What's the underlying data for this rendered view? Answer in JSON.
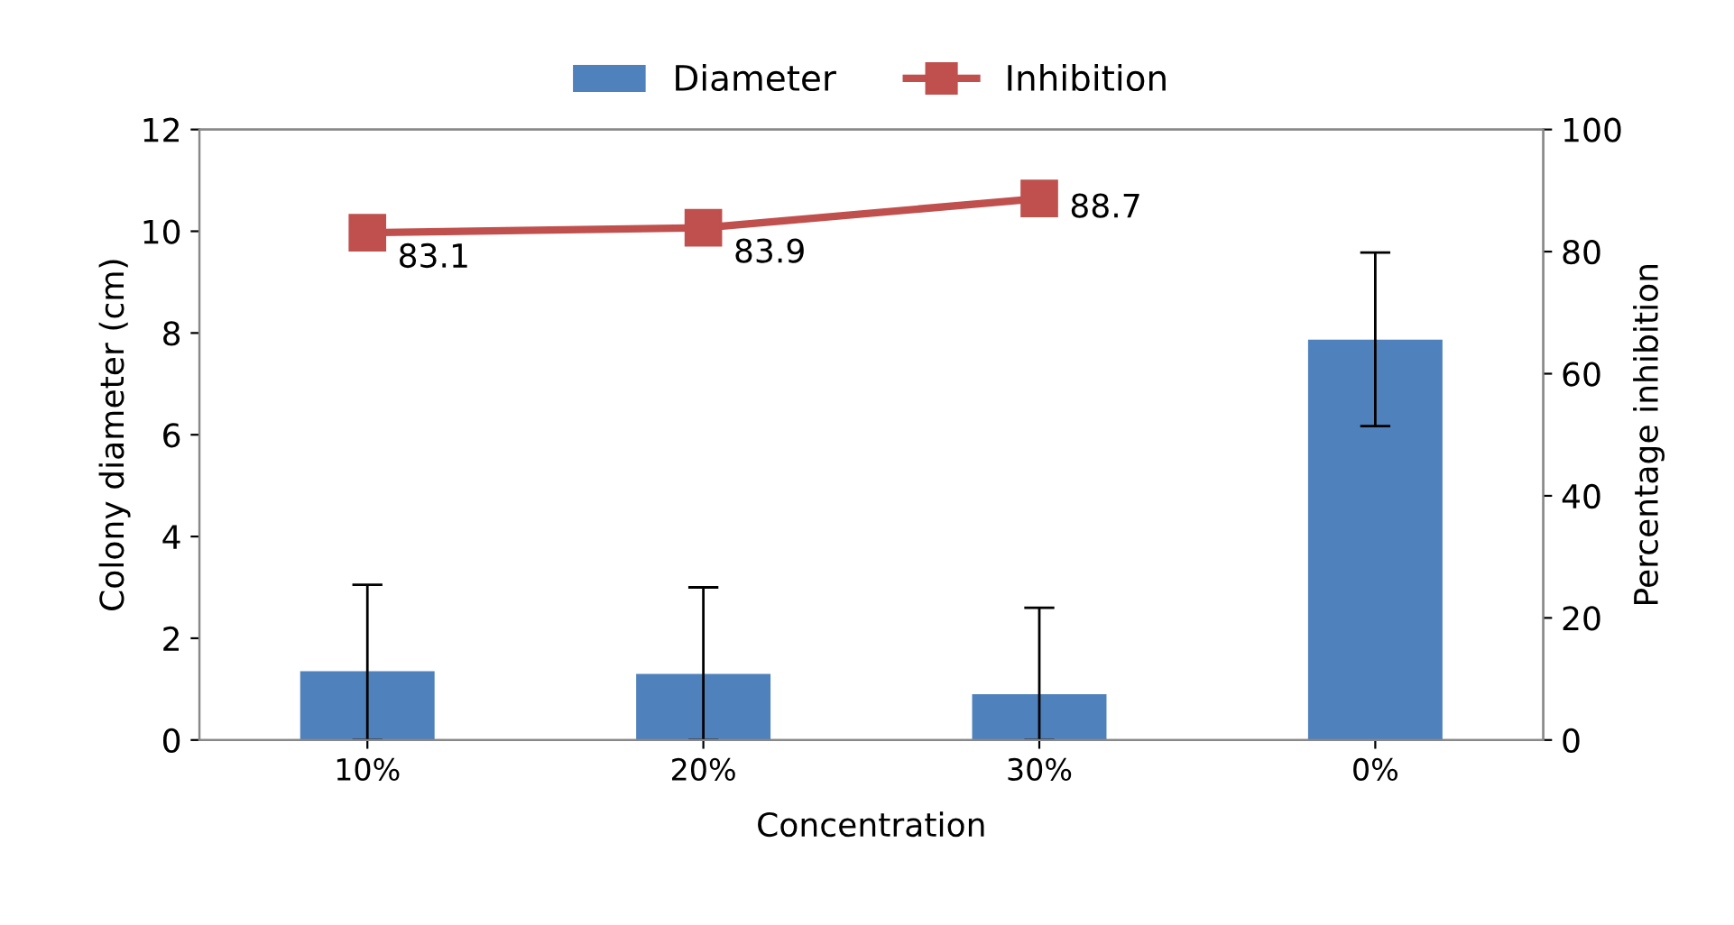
{
  "chart_data": {
    "type": "bar",
    "xlabel": "Concentration",
    "ylabel": "Colony diameter (cm)",
    "y2label": "Percentage inhibition",
    "categories": [
      "10%",
      "20%",
      "30%",
      "0%"
    ],
    "series": [
      {
        "name": "Diameter",
        "color": "#4f81bd",
        "values": [
          1.35,
          1.3,
          0.9,
          7.87
        ],
        "errors": [
          [
            0,
            3.05
          ],
          [
            0,
            3.0
          ],
          [
            0,
            2.6
          ],
          [
            6.17,
            9.58
          ]
        ]
      },
      {
        "name": "Inhibition",
        "type": "line",
        "axis": "y2",
        "color": "#c0504d",
        "values": [
          83.1,
          83.9,
          88.7,
          null
        ],
        "marker": "square",
        "data_labels": true
      }
    ],
    "ylim": [
      0,
      12
    ],
    "yticks": [
      0,
      2,
      4,
      6,
      8,
      10,
      12
    ],
    "y2lim": [
      0,
      100
    ],
    "y2ticks": [
      0,
      20,
      40,
      60,
      80,
      100
    ],
    "legend": "top",
    "grid": false
  }
}
